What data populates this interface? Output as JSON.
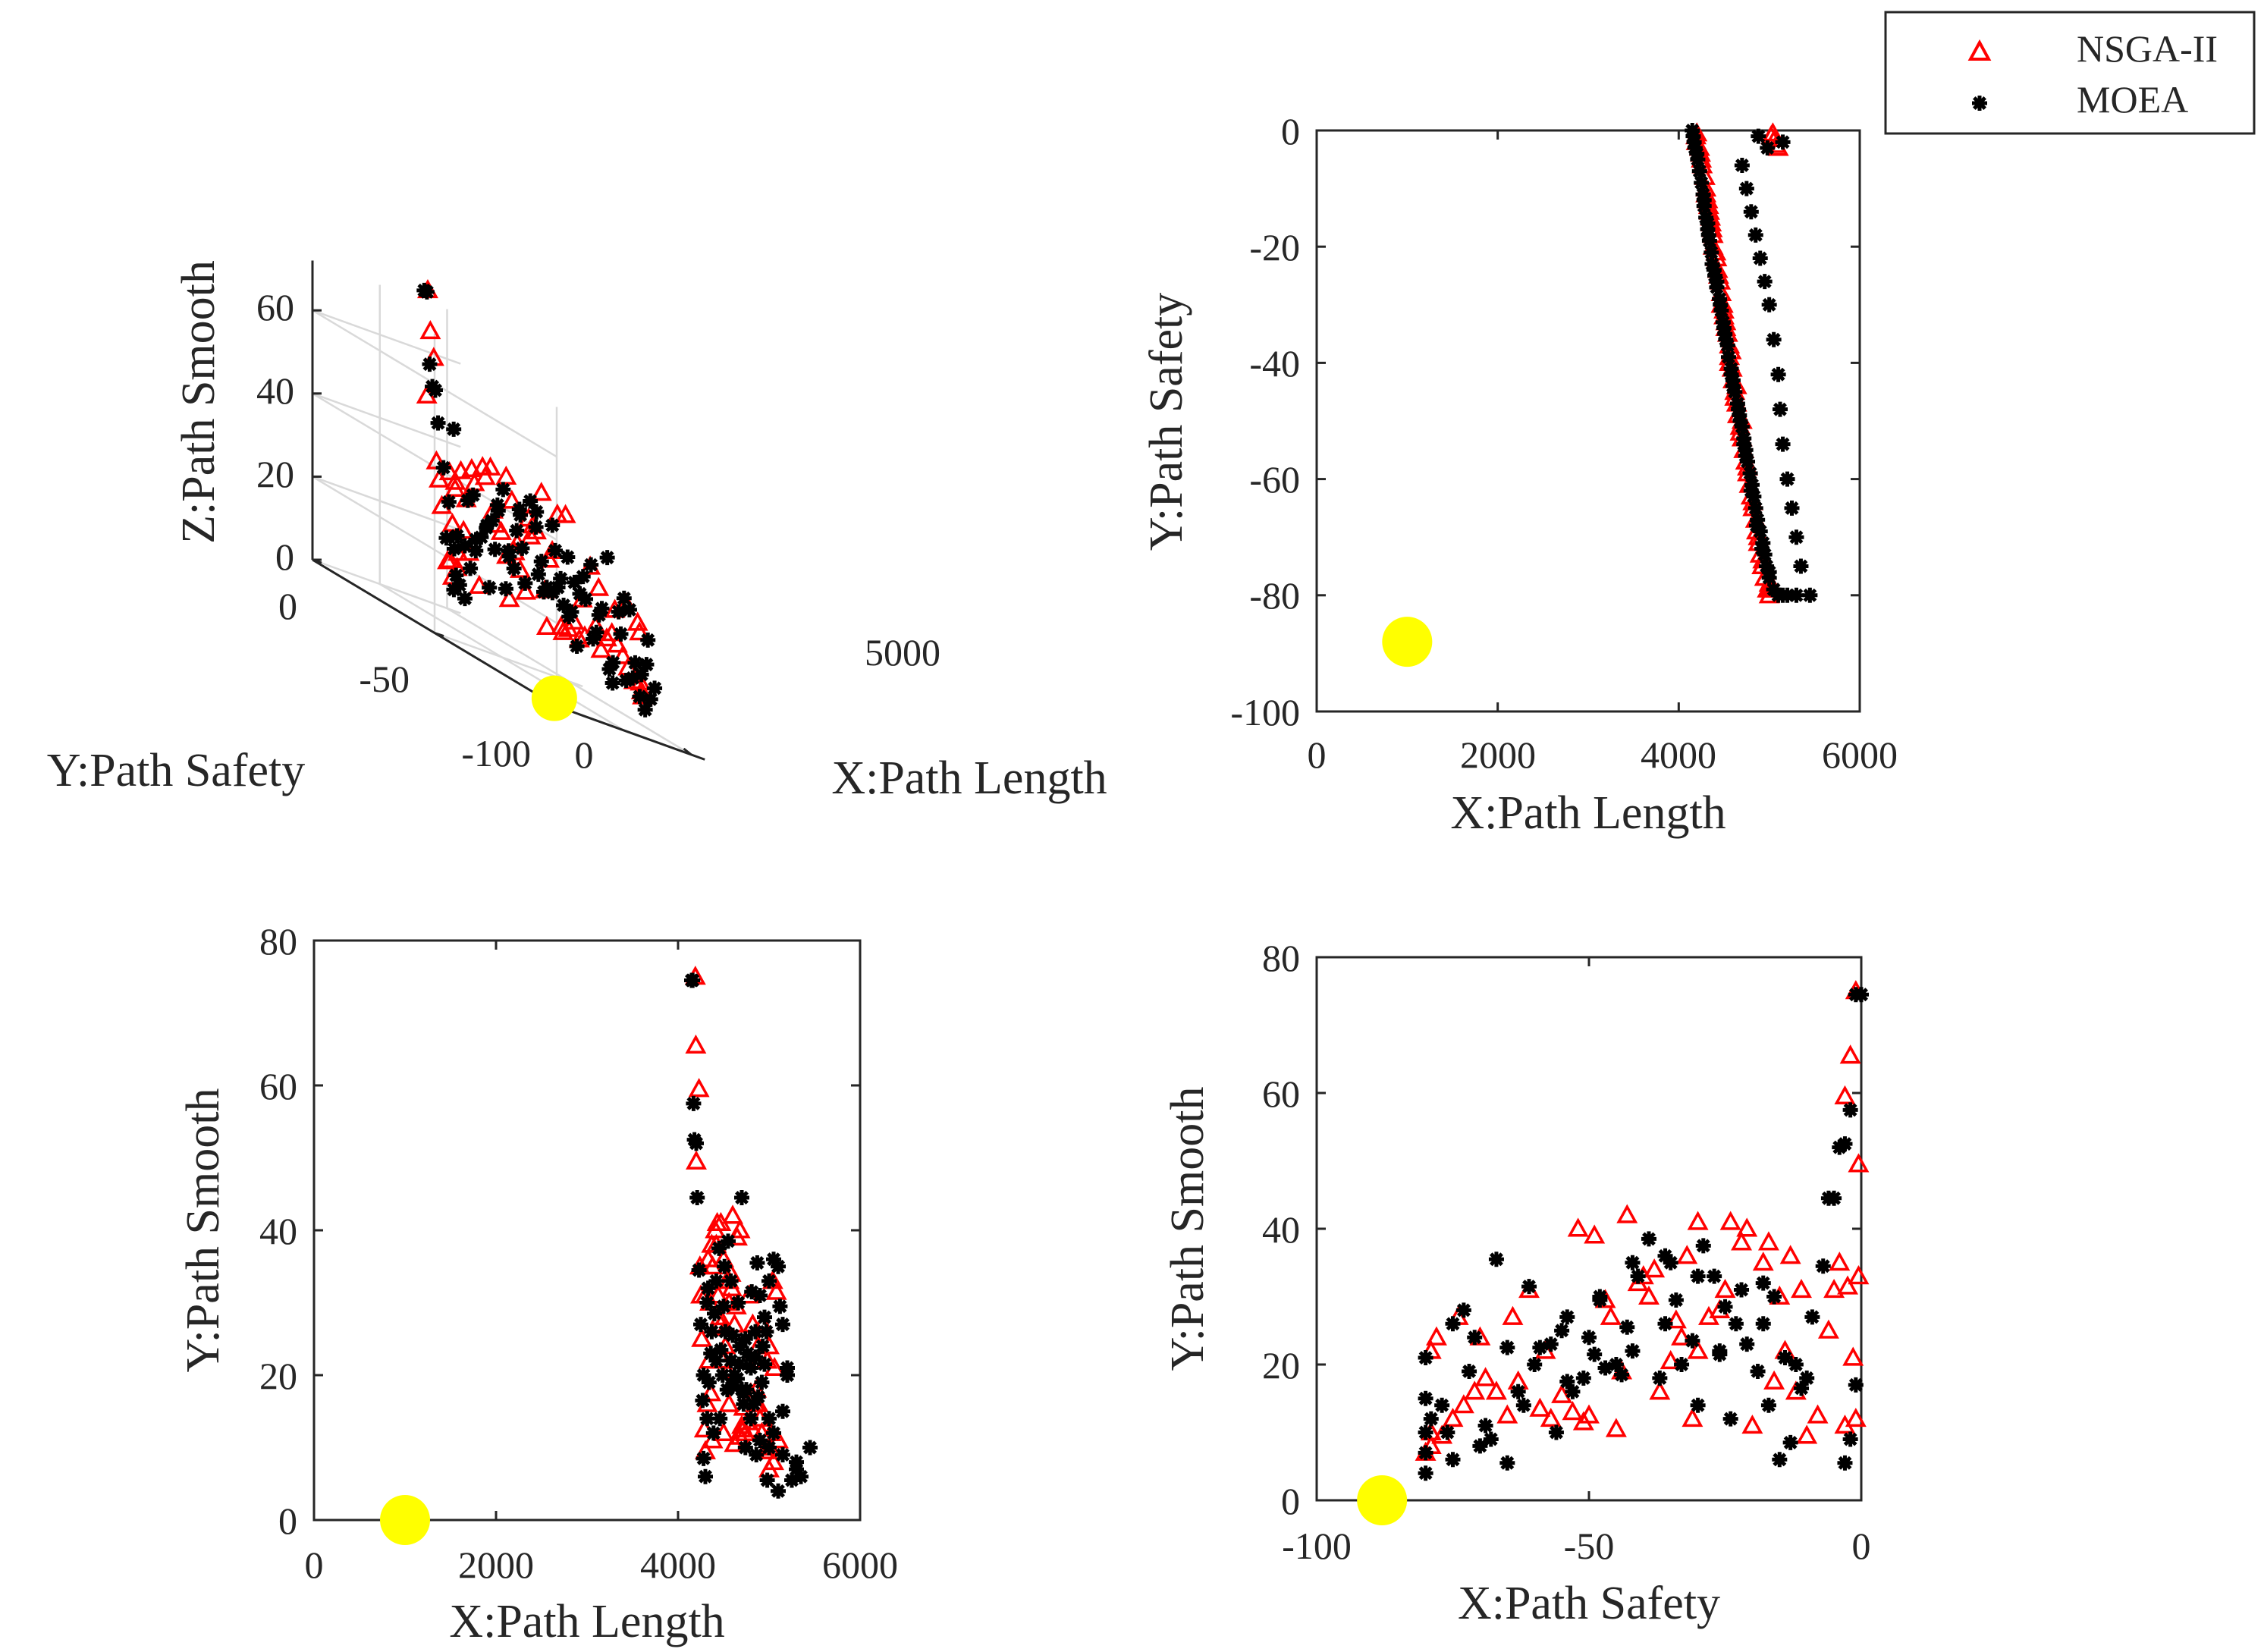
{
  "legend": {
    "entries": [
      {
        "label": "NSGA-II",
        "marker": "triangle",
        "color": "#ff0000"
      },
      {
        "label": "MOEA",
        "marker": "asterisk",
        "color": "#000000"
      }
    ],
    "placement": "top-right"
  },
  "reference_point": {
    "color": "#ffff00",
    "x_length": 1000,
    "y_safety": -88,
    "z_smooth": 0
  },
  "chart_data": [
    {
      "type": "scatter",
      "projection": "3d",
      "xlabel": "X:Path Length",
      "ylabel": "Y:Path Safety",
      "zlabel": "Z:Path Smooth",
      "xticks": [
        "0",
        "5000"
      ],
      "yticks": [
        "0",
        "-50",
        "-100"
      ],
      "zticks": [
        "0",
        "20",
        "40",
        "60"
      ],
      "grid": true
    },
    {
      "type": "scatter",
      "xlabel": "X:Path Length",
      "ylabel": "Y:Path Safety",
      "xlim": [
        0,
        6000
      ],
      "ylim": [
        -100,
        0
      ],
      "xticks": [
        "0",
        "2000",
        "4000",
        "6000"
      ],
      "yticks": [
        "0",
        "-20",
        "-40",
        "-60",
        "-80",
        "-100"
      ]
    },
    {
      "type": "scatter",
      "xlabel": "X:Path Length",
      "ylabel": "Y:Path Smooth",
      "xlim": [
        0,
        6000
      ],
      "ylim": [
        0,
        80
      ],
      "xticks": [
        "0",
        "2000",
        "4000",
        "6000"
      ],
      "yticks": [
        "0",
        "20",
        "40",
        "60",
        "80"
      ]
    },
    {
      "type": "scatter",
      "xlabel": "X:Path Safety",
      "ylabel": "Y:Path Smooth",
      "xlim": [
        -100,
        0
      ],
      "ylim": [
        0,
        80
      ],
      "xticks": [
        "-100",
        "-50",
        "0"
      ],
      "yticks": [
        "0",
        "20",
        "40",
        "60",
        "80"
      ]
    }
  ],
  "series": [
    {
      "name": "NSGA-II",
      "points": [
        [
          4190,
          -1,
          75
        ],
        [
          4195,
          -2,
          65.5
        ],
        [
          4200,
          -0.5,
          49.5
        ],
        [
          4230,
          -3,
          59.5
        ],
        [
          4240,
          -4,
          35
        ],
        [
          4250,
          -5,
          31
        ],
        [
          4260,
          -6,
          25
        ],
        [
          4290,
          -8,
          12.5
        ],
        [
          4300,
          -10,
          9.5
        ],
        [
          4320,
          -12,
          16
        ],
        [
          4340,
          -14,
          22
        ],
        [
          4360,
          -16,
          17.5
        ],
        [
          4380,
          -18,
          35
        ],
        [
          4380,
          -20,
          11
        ],
        [
          4420,
          -22,
          38
        ],
        [
          4430,
          -24,
          41
        ],
        [
          4460,
          -26,
          28
        ],
        [
          4470,
          -28,
          27
        ],
        [
          4490,
          -30,
          22
        ],
        [
          4500,
          -31,
          12
        ],
        [
          4520,
          -33,
          24
        ],
        [
          4540,
          -35,
          20.5
        ],
        [
          4560,
          -37,
          16
        ],
        [
          4560,
          -39,
          30
        ],
        [
          4590,
          -41,
          32
        ],
        [
          4600,
          -43,
          42
        ],
        [
          4620,
          -45,
          10.5
        ],
        [
          4640,
          -47,
          29.5
        ],
        [
          4650,
          -49,
          39
        ],
        [
          4680,
          -51,
          11.5
        ],
        [
          4700,
          -53,
          13
        ],
        [
          4720,
          -55,
          15.5
        ],
        [
          4740,
          -57,
          12
        ],
        [
          4760,
          -59,
          13.5
        ],
        [
          4780,
          -61,
          31
        ],
        [
          4800,
          -63,
          17.5
        ],
        [
          4820,
          -65,
          12.5
        ],
        [
          4850,
          -67,
          16
        ],
        [
          4860,
          -69,
          18
        ],
        [
          4880,
          -71,
          16
        ],
        [
          4900,
          -73,
          14
        ],
        [
          4920,
          -75,
          12
        ],
        [
          4950,
          -77,
          9.5
        ],
        [
          4980,
          -79,
          22
        ],
        [
          5000,
          -80,
          7
        ],
        [
          5010,
          -79,
          10
        ],
        [
          5050,
          -79,
          8
        ],
        [
          5040,
          -0.5,
          33
        ],
        [
          5060,
          -1.5,
          21
        ],
        [
          5080,
          -2.5,
          31.5
        ],
        [
          5100,
          -3,
          11
        ],
        [
          5020,
          -1,
          12
        ],
        [
          4350,
          -15,
          30
        ],
        [
          4410,
          -21,
          40
        ],
        [
          4470,
          -30,
          41
        ],
        [
          4520,
          -34,
          26.5
        ],
        [
          4580,
          -38,
          34
        ],
        [
          4640,
          -44,
          19
        ],
        [
          4700,
          -50,
          12.5
        ],
        [
          4760,
          -58,
          22
        ],
        [
          4820,
          -64,
          27
        ],
        [
          4880,
          -70,
          24
        ],
        [
          4930,
          -74,
          27
        ],
        [
          5000,
          -78,
          24
        ],
        [
          4300,
          -11,
          31
        ],
        [
          4330,
          -13,
          36
        ],
        [
          4370,
          -17,
          38
        ],
        [
          4440,
          -25,
          31
        ],
        [
          4500,
          -32,
          36
        ],
        [
          4560,
          -40,
          33
        ],
        [
          4620,
          -46,
          27
        ],
        [
          4680,
          -52,
          40
        ]
      ]
    },
    {
      "name": "MOEA",
      "points": [
        [
          4150,
          0,
          74.5
        ],
        [
          4160,
          -1,
          74.5
        ],
        [
          4170,
          -2,
          57.5
        ],
        [
          4180,
          -3,
          52.5
        ],
        [
          4200,
          -4,
          52
        ],
        [
          4210,
          -5,
          44.5
        ],
        [
          4230,
          -7,
          34.5
        ],
        [
          4250,
          -9,
          27
        ],
        [
          4270,
          -11,
          16.5
        ],
        [
          4280,
          -13,
          8.5
        ],
        [
          4300,
          -15,
          6
        ],
        [
          4320,
          -17,
          14
        ],
        [
          4340,
          -19,
          19
        ],
        [
          4360,
          -21,
          23
        ],
        [
          4370,
          -23,
          26
        ],
        [
          4400,
          -25,
          28.5
        ],
        [
          4420,
          -27,
          33
        ],
        [
          4450,
          -29,
          37.5
        ],
        [
          4470,
          -31,
          23.5
        ],
        [
          4490,
          -33,
          20
        ],
        [
          4510,
          -35,
          35
        ],
        [
          4540,
          -37,
          18
        ],
        [
          4550,
          -39,
          38.5
        ],
        [
          4580,
          -41,
          33
        ],
        [
          4600,
          -43,
          25.5
        ],
        [
          4620,
          -45,
          20
        ],
        [
          4650,
          -47,
          19.5
        ],
        [
          4670,
          -49,
          21.5
        ],
        [
          4700,
          -51,
          18
        ],
        [
          4720,
          -53,
          16
        ],
        [
          4740,
          -55,
          25
        ],
        [
          4760,
          -57,
          23
        ],
        [
          4790,
          -59,
          22.5
        ],
        [
          4810,
          -61,
          31.5
        ],
        [
          4830,
          -63,
          16
        ],
        [
          4850,
          -65,
          22.5
        ],
        [
          4870,
          -67,
          35.5
        ],
        [
          4900,
          -69,
          11
        ],
        [
          4930,
          -71,
          24
        ],
        [
          4950,
          -73,
          28
        ],
        [
          4970,
          -75,
          26
        ],
        [
          5000,
          -77,
          14
        ],
        [
          5050,
          -79,
          12
        ],
        [
          5100,
          -80,
          4
        ],
        [
          5150,
          -80,
          15
        ],
        [
          5200,
          -80,
          21
        ],
        [
          5300,
          -80,
          7
        ],
        [
          5450,
          -80,
          10
        ],
        [
          5350,
          -75,
          6
        ],
        [
          5300,
          -70,
          8
        ],
        [
          5250,
          -65,
          5.5
        ],
        [
          5200,
          -60,
          20
        ],
        [
          5150,
          -54,
          27
        ],
        [
          5120,
          -48,
          29.5
        ],
        [
          5100,
          -42,
          35
        ],
        [
          5050,
          -36,
          36
        ],
        [
          5000,
          -30,
          33
        ],
        [
          4950,
          -26,
          21.5
        ],
        [
          4900,
          -22,
          31
        ],
        [
          4850,
          -18,
          26
        ],
        [
          4800,
          -14,
          21
        ],
        [
          4750,
          -10,
          18
        ],
        [
          4700,
          -6,
          44.5
        ],
        [
          4880,
          -1,
          17
        ],
        [
          5150,
          -2,
          9
        ],
        [
          4980,
          -3,
          5.5
        ],
        [
          4320,
          -16,
          30
        ],
        [
          4390,
          -24,
          12
        ],
        [
          4460,
          -30,
          14
        ],
        [
          4520,
          -36,
          26
        ],
        [
          4600,
          -44,
          18.5
        ],
        [
          4680,
          -50,
          24
        ],
        [
          4740,
          -56,
          10
        ],
        [
          4800,
          -62,
          14
        ],
        [
          4860,
          -68,
          9
        ],
        [
          4920,
          -72,
          19
        ],
        [
          5000,
          -76,
          10
        ],
        [
          4280,
          -12,
          20
        ],
        [
          4330,
          -18,
          32
        ],
        [
          4420,
          -26,
          22
        ],
        [
          4500,
          -34,
          29.5
        ],
        [
          4580,
          -42,
          22
        ],
        [
          4660,
          -48,
          30
        ],
        [
          4720,
          -54,
          17.5
        ]
      ]
    }
  ]
}
